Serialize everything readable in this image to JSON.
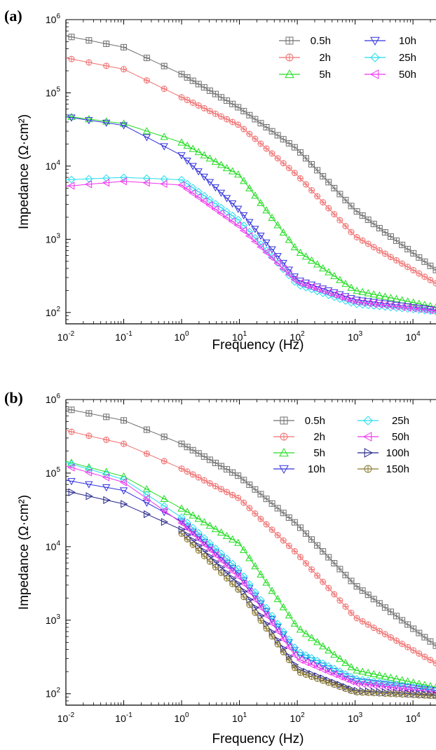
{
  "chart_data": [
    {
      "panel_label": "(a)",
      "type": "line",
      "xlabel": "Frequency (Hz)",
      "ylabel": "Impedance (Ω·cm²)",
      "xscale": "log",
      "yscale": "log",
      "xlim": [
        0.01,
        25000
      ],
      "ylim": [
        70,
        1000000
      ],
      "x_ticks": [
        {
          "base": "10",
          "exp": "-2"
        },
        {
          "base": "10",
          "exp": "-1"
        },
        {
          "base": "10",
          "exp": "0"
        },
        {
          "base": "10",
          "exp": "1"
        },
        {
          "base": "10",
          "exp": "2"
        },
        {
          "base": "10",
          "exp": "3"
        },
        {
          "base": "10",
          "exp": "4"
        }
      ],
      "y_ticks": [
        {
          "base": "10",
          "exp": "2"
        },
        {
          "base": "10",
          "exp": "3"
        },
        {
          "base": "10",
          "exp": "4"
        },
        {
          "base": "10",
          "exp": "5"
        },
        {
          "base": "10",
          "exp": "6"
        }
      ],
      "grid": false,
      "legend_position": "top-right",
      "legend_columns": 2,
      "series": [
        {
          "name": "0.5h",
          "color": "#707070",
          "marker": "square-plus",
          "points": [
            [
              0.01,
              600000
            ],
            [
              0.1,
              420000
            ],
            [
              1,
              180000
            ],
            [
              10,
              62000
            ],
            [
              100,
              17000
            ],
            [
              1000,
              2500
            ],
            [
              25000,
              380
            ]
          ]
        },
        {
          "name": "2h",
          "color": "#f07070",
          "marker": "circle-plus",
          "points": [
            [
              0.01,
              300000
            ],
            [
              0.1,
              210000
            ],
            [
              1,
              87000
            ],
            [
              10,
              36000
            ],
            [
              100,
              7500
            ],
            [
              1000,
              1100
            ],
            [
              25000,
              250
            ]
          ]
        },
        {
          "name": "5h",
          "color": "#22dd22",
          "marker": "triangle-up",
          "points": [
            [
              0.01,
              48000
            ],
            [
              0.1,
              38000
            ],
            [
              1,
              21000
            ],
            [
              10,
              7500
            ],
            [
              100,
              700
            ],
            [
              1000,
              200
            ],
            [
              25000,
              118
            ]
          ]
        },
        {
          "name": "10h",
          "color": "#3333dd",
          "marker": "triangle-down",
          "points": [
            [
              0.01,
              47000
            ],
            [
              0.1,
              36000
            ],
            [
              1,
              14000
            ],
            [
              10,
              2500
            ],
            [
              100,
              280
            ],
            [
              1000,
              150
            ],
            [
              25000,
              108
            ]
          ]
        },
        {
          "name": "25h",
          "color": "#22ddee",
          "marker": "diamond",
          "points": [
            [
              0.01,
              6500
            ],
            [
              0.1,
              7000
            ],
            [
              1,
              6500
            ],
            [
              10,
              1800
            ],
            [
              100,
              240
            ],
            [
              1000,
              130
            ],
            [
              25000,
              103
            ]
          ]
        },
        {
          "name": "50h",
          "color": "#ee33ee",
          "marker": "triangle-left",
          "points": [
            [
              0.01,
              5300
            ],
            [
              0.1,
              6200
            ],
            [
              1,
              5500
            ],
            [
              10,
              1500
            ],
            [
              100,
              260
            ],
            [
              1000,
              140
            ],
            [
              25000,
              105
            ]
          ]
        }
      ]
    },
    {
      "panel_label": "(b)",
      "type": "line",
      "xlabel": "Frequency (Hz)",
      "ylabel": "Impedance (Ω·cm²)",
      "xscale": "log",
      "yscale": "log",
      "xlim": [
        0.01,
        25000
      ],
      "ylim": [
        70,
        1000000
      ],
      "x_ticks": [
        {
          "base": "10",
          "exp": "-2"
        },
        {
          "base": "10",
          "exp": "-1"
        },
        {
          "base": "10",
          "exp": "0"
        },
        {
          "base": "10",
          "exp": "1"
        },
        {
          "base": "10",
          "exp": "2"
        },
        {
          "base": "10",
          "exp": "3"
        },
        {
          "base": "10",
          "exp": "4"
        }
      ],
      "y_ticks": [
        {
          "base": "10",
          "exp": "2"
        },
        {
          "base": "10",
          "exp": "3"
        },
        {
          "base": "10",
          "exp": "4"
        },
        {
          "base": "10",
          "exp": "5"
        },
        {
          "base": "10",
          "exp": "6"
        }
      ],
      "grid": false,
      "legend_position": "top-right",
      "legend_columns": 2,
      "series": [
        {
          "name": "0.5h",
          "color": "#707070",
          "marker": "square-plus",
          "points": [
            [
              0.01,
              750000
            ],
            [
              0.1,
              520000
            ],
            [
              1,
              250000
            ],
            [
              10,
              90000
            ],
            [
              100,
              20000
            ],
            [
              1000,
              3000
            ],
            [
              25000,
              450
            ]
          ]
        },
        {
          "name": "2h",
          "color": "#f07070",
          "marker": "circle-plus",
          "points": [
            [
              0.01,
              380000
            ],
            [
              0.1,
              250000
            ],
            [
              1,
              115000
            ],
            [
              10,
              45000
            ],
            [
              100,
              8000
            ],
            [
              1000,
              1100
            ],
            [
              25000,
              260
            ]
          ]
        },
        {
          "name": "5h",
          "color": "#22dd22",
          "marker": "triangle-up",
          "points": [
            [
              0.01,
              145000
            ],
            [
              0.1,
              90000
            ],
            [
              1,
              33000
            ],
            [
              10,
              11000
            ],
            [
              100,
              800
            ],
            [
              1000,
              210
            ],
            [
              25000,
              122
            ]
          ]
        },
        {
          "name": "10h",
          "color": "#3333dd",
          "marker": "triangle-down",
          "points": [
            [
              0.01,
              80000
            ],
            [
              0.1,
              58000
            ],
            [
              1,
              22000
            ],
            [
              10,
              4200
            ],
            [
              100,
              350
            ],
            [
              1000,
              150
            ],
            [
              25000,
              110
            ]
          ]
        },
        {
          "name": "25h",
          "color": "#22ddee",
          "marker": "diamond",
          "points": [
            [
              0.01,
              140000
            ],
            [
              0.1,
              82000
            ],
            [
              1,
              25000
            ],
            [
              10,
              4800
            ],
            [
              100,
              380
            ],
            [
              1000,
              160
            ],
            [
              25000,
              112
            ]
          ]
        },
        {
          "name": "50h",
          "color": "#ee33ee",
          "marker": "triangle-left",
          "points": [
            [
              0.01,
              125000
            ],
            [
              0.1,
              75000
            ],
            [
              1,
              21000
            ],
            [
              10,
              3800
            ],
            [
              100,
              300
            ],
            [
              1000,
              140
            ],
            [
              25000,
              105
            ]
          ]
        },
        {
          "name": "100h",
          "color": "#222288",
          "marker": "triangle-right",
          "points": [
            [
              0.01,
              57000
            ],
            [
              0.1,
              38000
            ],
            [
              1,
              17000
            ],
            [
              10,
              3000
            ],
            [
              100,
              220
            ],
            [
              1000,
              110
            ],
            [
              25000,
              96
            ]
          ]
        },
        {
          "name": "150h",
          "color": "#8a7a30",
          "marker": "circle-plus",
          "points": [
            [
              1,
              15000
            ],
            [
              10,
              2500
            ],
            [
              100,
              200
            ],
            [
              1000,
              105
            ],
            [
              25000,
              93
            ]
          ]
        }
      ]
    }
  ]
}
